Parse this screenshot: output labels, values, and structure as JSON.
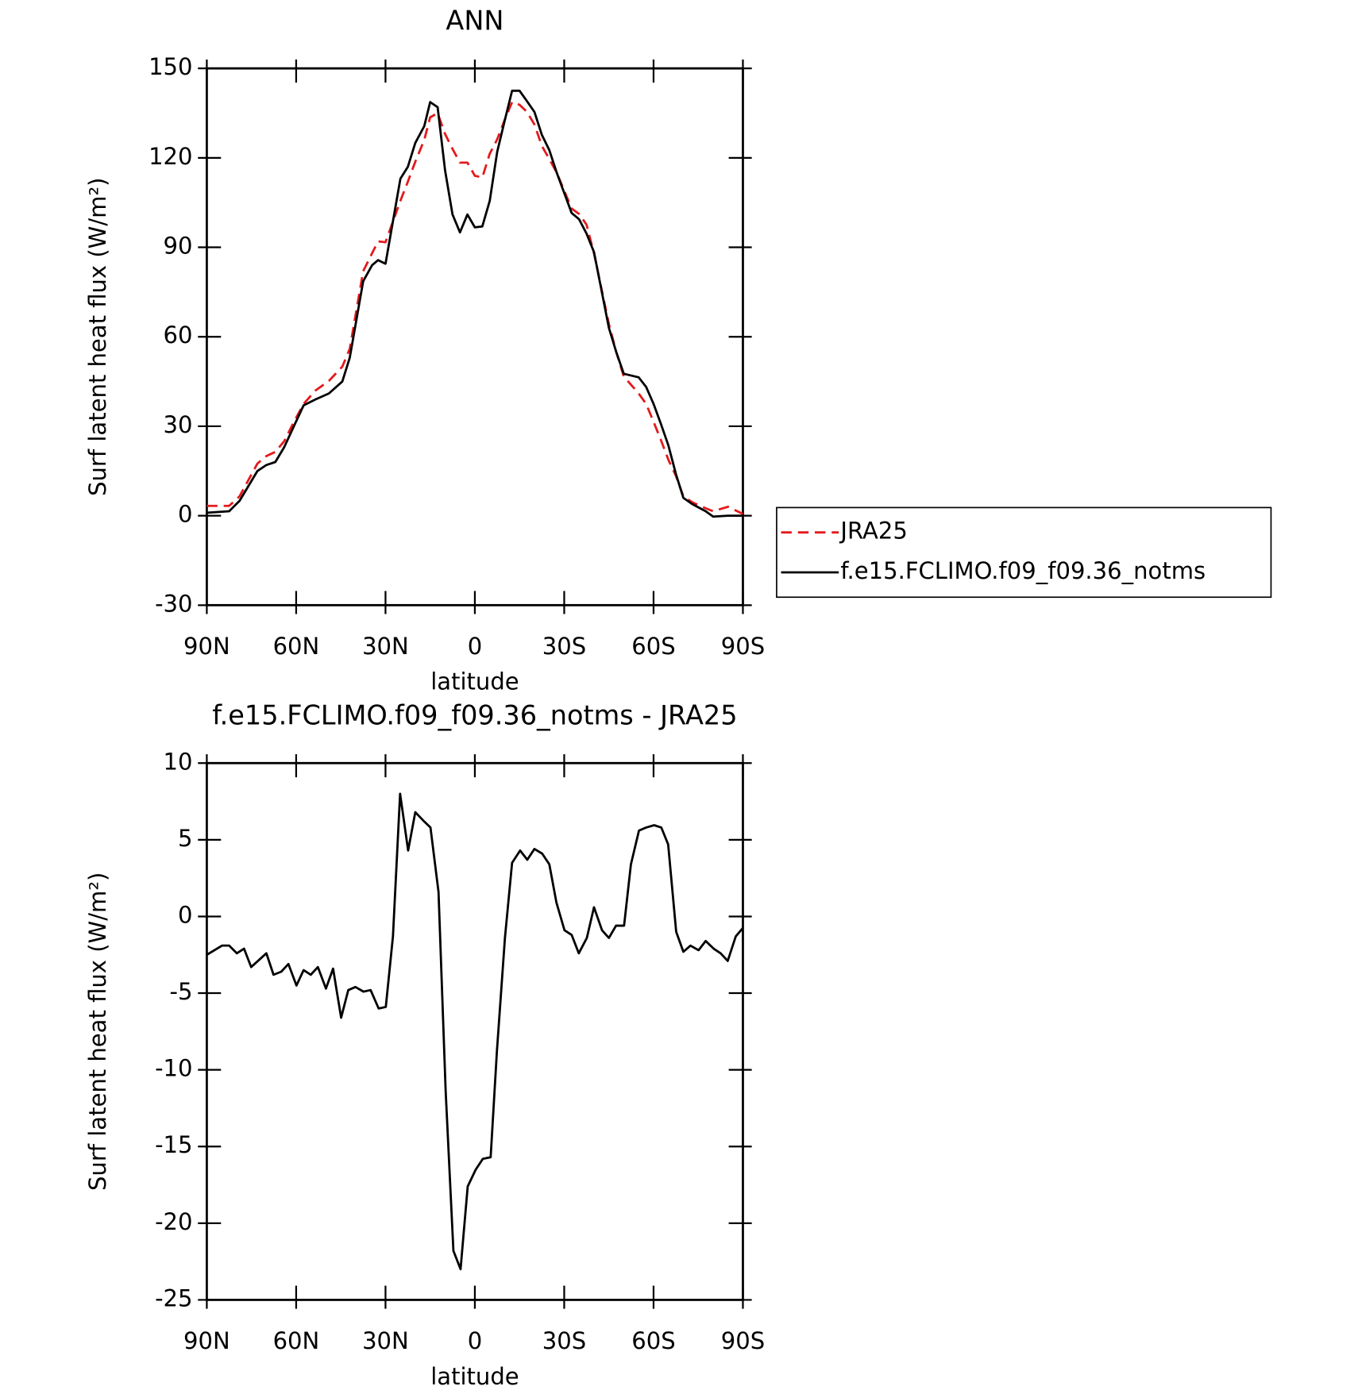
{
  "chart_data": [
    {
      "type": "line",
      "title": "ANN",
      "xlabel": "latitude",
      "ylabel": "Surf latent heat flux (W/m²)",
      "legend": "right",
      "x": [
        90,
        82.5,
        79,
        73,
        70,
        67,
        64,
        61,
        57.5,
        53.5,
        49,
        44.5,
        42,
        37.5,
        34.5,
        32.5,
        30,
        25,
        22.5,
        20,
        17,
        15,
        12.5,
        10,
        7.5,
        5,
        2.5,
        0,
        -2.5,
        -5,
        -7.5,
        -10,
        -12.5,
        -15,
        -17.5,
        -20,
        -22.5,
        -25,
        -27.5,
        -32.5,
        -35,
        -37.5,
        -40,
        -45,
        -47.5,
        -50,
        -55,
        -57.5,
        -60,
        -62.5,
        -65,
        -67.5,
        -70,
        -73,
        -77.5,
        -80,
        -85,
        -90
      ],
      "series": [
        {
          "name": "JRA25",
          "color": "#e41a1c",
          "line_style": "dashed",
          "values": [
            3.3,
            3.3,
            6.5,
            17.5,
            20,
            21.4,
            25,
            31,
            37.5,
            42,
            45.2,
            50,
            56,
            82,
            88,
            92,
            91.7,
            105.6,
            112,
            118.7,
            126,
            133.6,
            135,
            128,
            123,
            118.4,
            118.4,
            114,
            113.4,
            121.4,
            126.2,
            132.7,
            138.7,
            137.8,
            135.4,
            131.2,
            124,
            119.6,
            115,
            103,
            101.2,
            97.6,
            88,
            64.3,
            54.8,
            46.7,
            41,
            37.5,
            31.5,
            25.3,
            18.7,
            13.4,
            6.5,
            4.5,
            2.5,
            1.5,
            3,
            0.6
          ]
        },
        {
          "name": "f.e15.FCLIMO.f09_f09.36_notms",
          "color": "#000000",
          "line_style": "solid",
          "values": [
            1,
            1.5,
            5,
            15,
            17,
            18,
            23,
            29.5,
            37,
            39,
            41,
            45,
            53,
            78.6,
            84,
            85.7,
            84.5,
            113,
            117,
            125,
            130.6,
            138.7,
            137,
            115.8,
            101,
            95,
            101,
            96.7,
            97,
            105.6,
            122,
            132.4,
            142.5,
            142.5,
            139,
            135.4,
            127.7,
            122.6,
            115,
            101.5,
            99.4,
            94.6,
            88.4,
            63,
            54.8,
            47.6,
            46.4,
            43.2,
            37.5,
            30.7,
            23.5,
            14,
            6,
            3.9,
            1.5,
            -0.3,
            0,
            0
          ]
        }
      ],
      "xlim": [
        90,
        -90
      ],
      "xticks": [
        {
          "value": 90,
          "label": "90N"
        },
        {
          "value": 60,
          "label": "60N"
        },
        {
          "value": 30,
          "label": "30N"
        },
        0,
        {
          "value": -30,
          "label": "30S"
        },
        {
          "value": -60,
          "label": "60S"
        },
        {
          "value": -90,
          "label": "90S"
        }
      ],
      "ylim": [
        -30,
        150
      ],
      "yticks": [
        -30,
        0,
        30,
        60,
        90,
        120,
        150
      ]
    },
    {
      "type": "line",
      "title": "f.e15.FCLIMO.f09_f09.36_notms - JRA25",
      "xlabel": "latitude",
      "ylabel": "Surf latent heat flux (W/m²)",
      "x": [
        90,
        84.9,
        82.5,
        79.9,
        77.5,
        75.1,
        70,
        67.6,
        65,
        62.6,
        59.9,
        57.5,
        55.1,
        52.7,
        50,
        47.6,
        44.9,
        42.5,
        40.1,
        37.4,
        35,
        32.3,
        29.9,
        27.5,
        25.1,
        22.4,
        20,
        17.3,
        14.9,
        12.2,
        9.8,
        7.2,
        4.8,
        2.4,
        -0.3,
        -2.7,
        -5.3,
        -7.4,
        -10.1,
        -12.5,
        -15.2,
        -17.6,
        -20,
        -22.6,
        -25,
        -27.4,
        -30.1,
        -32.5,
        -34.9,
        -37.6,
        -40,
        -42.7,
        -45,
        -47.4,
        -50.1,
        -52.4,
        -55.1,
        -57.5,
        -60.2,
        -62.6,
        -64.9,
        -67.6,
        -70,
        -72.4,
        -75.1,
        -77.5,
        -80.2,
        -82.5,
        -84.9,
        -87.6,
        -90
      ],
      "series": [
        {
          "color": "#000000",
          "line_style": "solid",
          "values": [
            -2.5,
            -1.9,
            -1.9,
            -2.4,
            -2.1,
            -3.3,
            -2.4,
            -3.8,
            -3.6,
            -3.1,
            -4.5,
            -3.5,
            -3.8,
            -3.3,
            -4.7,
            -3.4,
            -6.6,
            -4.8,
            -4.6,
            -4.9,
            -4.8,
            -6,
            -5.9,
            -1.3,
            8,
            4.3,
            6.8,
            6.25,
            5.8,
            1.6,
            -11.4,
            -21.8,
            -23,
            -17.6,
            -16.5,
            -15.8,
            -15.7,
            -8.8,
            -1.4,
            3.5,
            4.3,
            3.7,
            4.4,
            4.1,
            3.4,
            0.9,
            -0.9,
            -1.2,
            -2.4,
            -1.4,
            0.6,
            -0.9,
            -1.4,
            -0.6,
            -0.6,
            3.4,
            5.6,
            5.8,
            5.95,
            5.8,
            4.7,
            -1,
            -2.3,
            -1.9,
            -2.2,
            -1.6,
            -2.1,
            -2.4,
            -2.9,
            -1.3,
            -0.75
          ]
        }
      ],
      "xlim": [
        90,
        -90
      ],
      "xticks": [
        {
          "value": 90,
          "label": "90N"
        },
        {
          "value": 60,
          "label": "60N"
        },
        {
          "value": 30,
          "label": "30N"
        },
        0,
        {
          "value": -30,
          "label": "30S"
        },
        {
          "value": -60,
          "label": "60S"
        },
        {
          "value": -90,
          "label": "90S"
        }
      ],
      "ylim": [
        -25,
        10
      ],
      "yticks": [
        -25,
        -20,
        -15,
        -10,
        -5,
        0,
        5,
        10
      ]
    }
  ]
}
